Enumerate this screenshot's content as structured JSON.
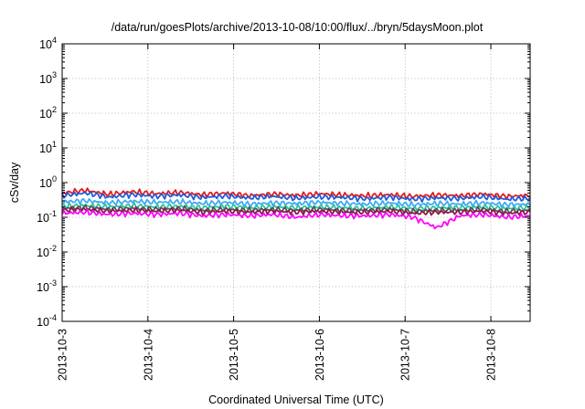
{
  "chart_data": {
    "type": "line",
    "title": "/data/run/goesPlots/archive/2013-10-08/10:00/flux/../bryn/5daysMoon.plot",
    "xlabel": "Coordinated Universal Time (UTC)",
    "ylabel": "cSv/day",
    "x_range": [
      "2013-10-03",
      "2013-10-08 11:00"
    ],
    "x_ticks": [
      "2013-10-3",
      "2013-10-4",
      "2013-10-5",
      "2013-10-6",
      "2013-10-7",
      "2013-10-8"
    ],
    "y_scale": "log",
    "ylim": [
      0.0001,
      10000
    ],
    "y_ticks": [
      {
        "base": "10",
        "exp": "4"
      },
      {
        "base": "10",
        "exp": "3"
      },
      {
        "base": "10",
        "exp": "2"
      },
      {
        "base": "10",
        "exp": "1"
      },
      {
        "base": "10",
        "exp": "0"
      },
      {
        "base": "10",
        "exp": "-1"
      },
      {
        "base": "10",
        "exp": "-2"
      },
      {
        "base": "10",
        "exp": "-3"
      },
      {
        "base": "10",
        "exp": "-4"
      }
    ],
    "grid": true,
    "legend": "none",
    "series": [
      {
        "color": "#e41a1c",
        "values": [
          0.5,
          0.6,
          0.46,
          0.55,
          0.48,
          0.52,
          0.45,
          0.5,
          0.42,
          0.47,
          0.43,
          0.48,
          0.44,
          0.42,
          0.45,
          0.4,
          0.44,
          0.42,
          0.47,
          0.4,
          0.43
        ]
      },
      {
        "color": "#1f5bd8",
        "values": [
          0.42,
          0.5,
          0.38,
          0.45,
          0.4,
          0.44,
          0.37,
          0.41,
          0.36,
          0.4,
          0.35,
          0.39,
          0.37,
          0.34,
          0.38,
          0.33,
          0.36,
          0.35,
          0.39,
          0.33,
          0.35
        ]
      },
      {
        "color": "#3fa9f5",
        "values": [
          0.28,
          0.3,
          0.26,
          0.29,
          0.27,
          0.28,
          0.25,
          0.27,
          0.24,
          0.26,
          0.25,
          0.27,
          0.25,
          0.24,
          0.26,
          0.23,
          0.25,
          0.24,
          0.26,
          0.23,
          0.24
        ]
      },
      {
        "color": "#2ec4a0",
        "values": [
          0.21,
          0.22,
          0.2,
          0.22,
          0.2,
          0.21,
          0.19,
          0.21,
          0.19,
          0.2,
          0.19,
          0.2,
          0.19,
          0.18,
          0.2,
          0.18,
          0.19,
          0.19,
          0.2,
          0.18,
          0.19
        ]
      },
      {
        "color": "#555555",
        "values": [
          0.18,
          0.19,
          0.17,
          0.18,
          0.17,
          0.18,
          0.16,
          0.17,
          0.16,
          0.17,
          0.16,
          0.17,
          0.16,
          0.16,
          0.17,
          0.15,
          0.16,
          0.16,
          0.17,
          0.15,
          0.16
        ]
      },
      {
        "color": "#8b1a4a",
        "values": [
          0.16,
          0.17,
          0.15,
          0.16,
          0.15,
          0.16,
          0.14,
          0.15,
          0.14,
          0.15,
          0.14,
          0.15,
          0.14,
          0.14,
          0.15,
          0.13,
          0.14,
          0.14,
          0.15,
          0.13,
          0.14
        ]
      },
      {
        "color": "#ff00ff",
        "values": [
          0.13,
          0.14,
          0.12,
          0.13,
          0.12,
          0.13,
          0.11,
          0.12,
          0.11,
          0.12,
          0.1,
          0.12,
          0.11,
          0.11,
          0.12,
          0.1,
          0.05,
          0.11,
          0.12,
          0.1,
          0.11
        ]
      }
    ]
  }
}
